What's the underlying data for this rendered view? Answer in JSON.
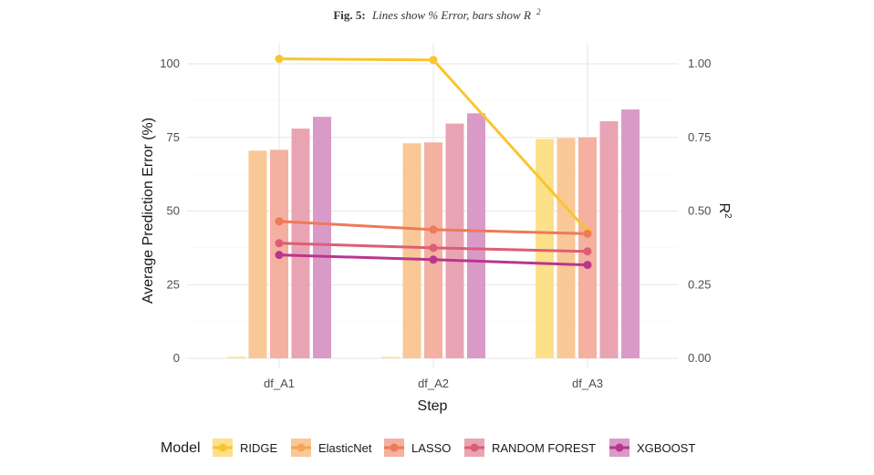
{
  "caption": {
    "prefix": "Fig. 5:",
    "text": "Lines show % Error, bars show R",
    "sup": "2"
  },
  "chart_data": {
    "type": "bar",
    "categories": [
      "df_A1",
      "df_A2",
      "df_A3"
    ],
    "xlabel": "Step",
    "ylabel": "Average Prediction Error (%)",
    "y2label": "R",
    "y2label_sup": "2",
    "ylim": [
      0,
      105
    ],
    "y2lim": [
      0,
      1.05
    ],
    "yticks": [
      "0",
      "25",
      "50",
      "75",
      "100"
    ],
    "y2ticks": [
      "0.00",
      "0.25",
      "0.50",
      "0.75",
      "1.00"
    ],
    "grid": true,
    "legend_position": "bottom",
    "legend_title": "Model",
    "bar_series_r2": [
      {
        "name": "RIDGE",
        "color": "#FDE08A",
        "values": [
          0.005,
          0.005,
          0.745
        ]
      },
      {
        "name": "ElasticNet",
        "color": "#F9C896",
        "values": [
          0.705,
          0.73,
          0.748
        ]
      },
      {
        "name": "LASSO",
        "color": "#F4B0A0",
        "values": [
          0.708,
          0.733,
          0.75
        ]
      },
      {
        "name": "RANDOM FOREST",
        "color": "#E9A4B3",
        "values": [
          0.78,
          0.797,
          0.805
        ]
      },
      {
        "name": "XGBOOST",
        "color": "#D99AC8",
        "values": [
          0.82,
          0.832,
          0.845
        ]
      }
    ],
    "line_series_error": [
      {
        "name": "RIDGE",
        "color": "#F9C52F",
        "values": [
          101.7,
          101.3,
          43.2
        ]
      },
      {
        "name": "ElasticNet",
        "color": "#F5A45B",
        "values": [
          null,
          null,
          null
        ]
      },
      {
        "name": "LASSO",
        "color": "#EE7A57",
        "values": [
          46.5,
          43.7,
          42.3
        ]
      },
      {
        "name": "RANDOM FOREST",
        "color": "#DC5E75",
        "values": [
          39.1,
          37.5,
          36.3
        ]
      },
      {
        "name": "XGBOOST",
        "color": "#B9368C",
        "values": [
          35.1,
          33.5,
          31.7
        ]
      }
    ]
  }
}
